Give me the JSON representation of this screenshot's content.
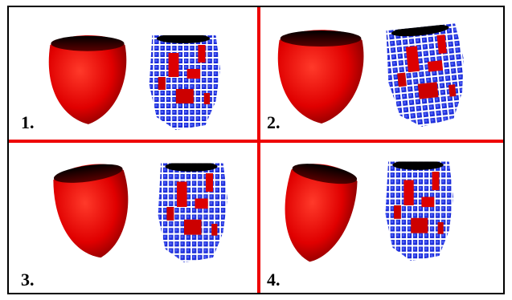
{
  "panels": [
    {
      "label": "1."
    },
    {
      "label": "2."
    },
    {
      "label": "3."
    },
    {
      "label": "4."
    }
  ]
}
